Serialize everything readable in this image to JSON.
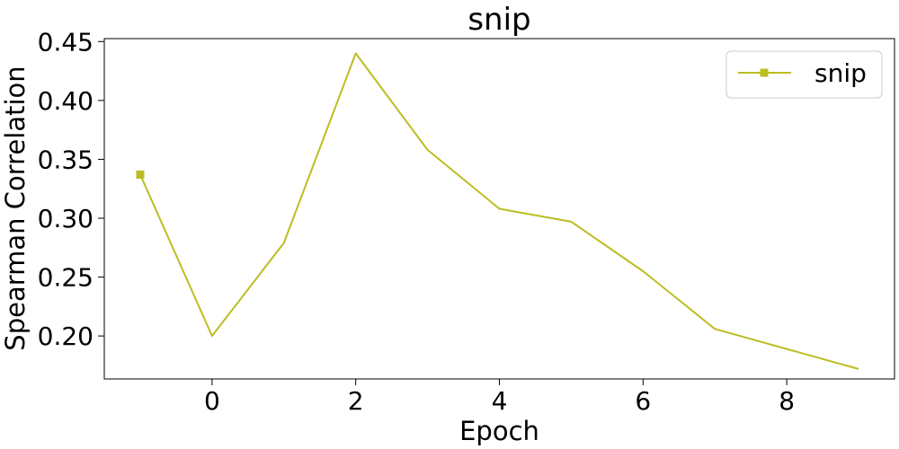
{
  "chart_data": {
    "type": "line",
    "title": "snip",
    "xlabel": "Epoch",
    "ylabel": "Spearman Correlation",
    "x": [
      -1,
      0,
      1,
      2,
      3,
      4,
      5,
      6,
      7,
      8,
      9
    ],
    "series": [
      {
        "name": "snip",
        "values": [
          0.337,
          0.2,
          0.279,
          0.44,
          0.358,
          0.308,
          0.297,
          0.255,
          0.206,
          0.189,
          0.172
        ],
        "color": "#bcbd22",
        "marker": "square",
        "marker_at_first_point_only": true
      }
    ],
    "xlim": [
      -1.5,
      9.5
    ],
    "ylim": [
      0.1635,
      0.4525
    ],
    "xticks": [
      0,
      2,
      4,
      6,
      8
    ],
    "yticks": [
      0.2,
      0.25,
      0.3,
      0.35,
      0.4,
      0.45
    ],
    "xtick_labels": [
      "0",
      "2",
      "4",
      "6",
      "8"
    ],
    "ytick_labels": [
      "0.20",
      "0.25",
      "0.30",
      "0.35",
      "0.40",
      "0.45"
    ],
    "grid": false,
    "legend_position": "top-right"
  }
}
